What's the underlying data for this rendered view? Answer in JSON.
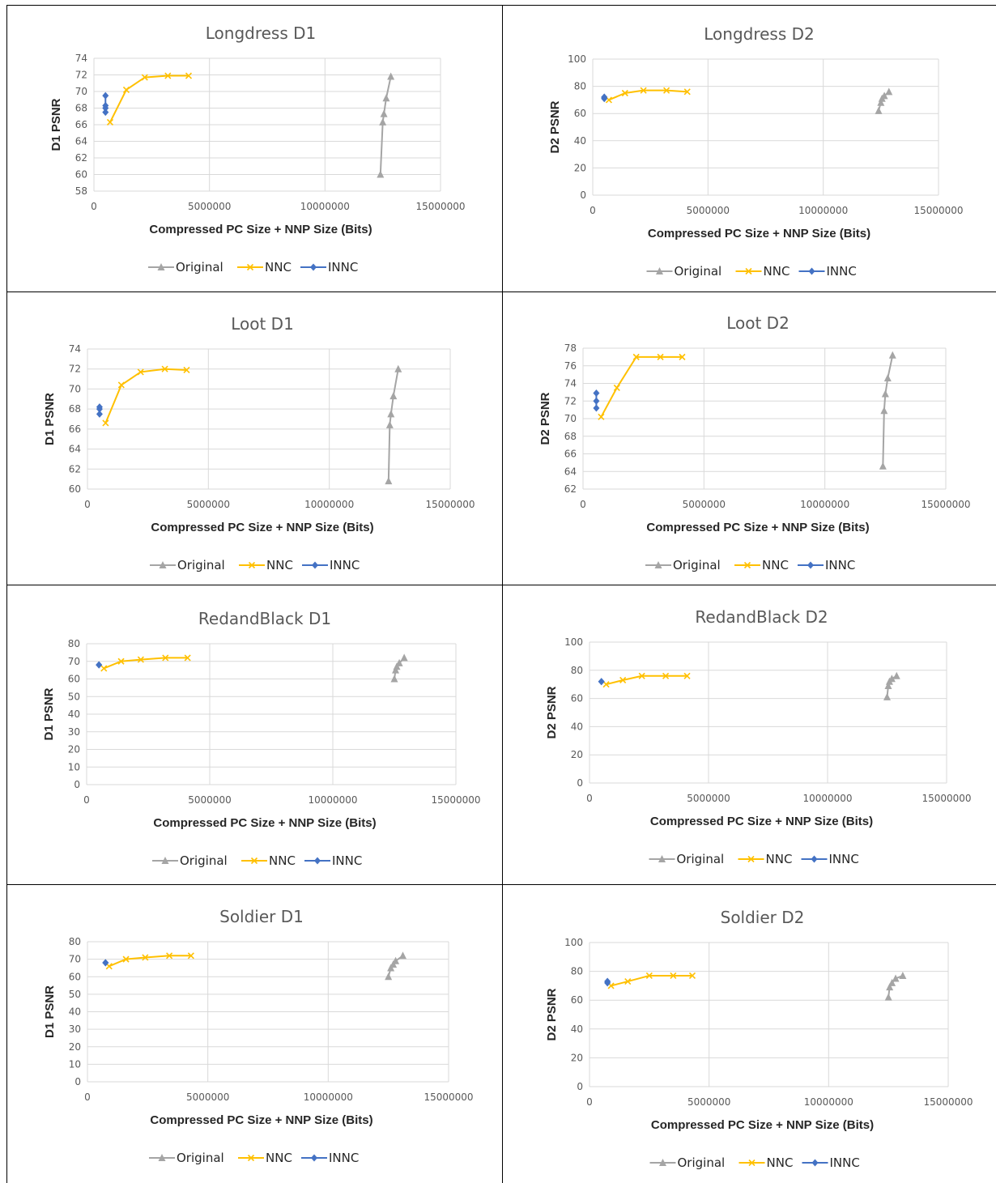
{
  "legend": [
    "Original",
    "NNC",
    "INNC"
  ],
  "colors": {
    "Original": "#a5a5a5",
    "NNC": "#ffc000",
    "INNC": "#4472c4",
    "grid": "#d9d9d9"
  },
  "chart_data": [
    {
      "type": "line",
      "title": "Longdress D1",
      "xlabel": "Compressed PC Size + NNP Size (Bits)",
      "ylabel": "D1 PSNR",
      "xlim": [
        0,
        15000000
      ],
      "xticks": [
        0,
        5000000,
        10000000,
        15000000
      ],
      "ylim": [
        58,
        74
      ],
      "yticks": [
        58,
        60,
        62,
        64,
        66,
        68,
        70,
        72,
        74
      ],
      "grid": true,
      "legend_position": "bottom",
      "series": [
        {
          "name": "Original",
          "marker": "triangle",
          "x": [
            12400000,
            12500000,
            12550000,
            12650000,
            12850000
          ],
          "y": [
            60.0,
            66.3,
            67.3,
            69.2,
            71.8
          ]
        },
        {
          "name": "NNC",
          "marker": "x",
          "x": [
            700000,
            1400000,
            2200000,
            3200000,
            4100000
          ],
          "y": [
            66.3,
            70.2,
            71.7,
            71.9,
            71.9
          ]
        },
        {
          "name": "INNC",
          "marker": "diamond",
          "x": [
            500000,
            500000,
            500000,
            500000
          ],
          "y": [
            67.5,
            68.0,
            68.3,
            69.5
          ]
        }
      ]
    },
    {
      "type": "line",
      "title": "Longdress D2",
      "xlabel": "Compressed PC Size + NNP Size (Bits)",
      "ylabel": "D2 PSNR",
      "xlim": [
        0,
        15000000
      ],
      "xticks": [
        0,
        5000000,
        10000000,
        15000000
      ],
      "ylim": [
        0,
        100
      ],
      "yticks": [
        0,
        20,
        40,
        60,
        80,
        100
      ],
      "grid": true,
      "legend_position": "bottom",
      "series": [
        {
          "name": "Original",
          "marker": "triangle",
          "x": [
            12400000,
            12500000,
            12550000,
            12650000,
            12850000
          ],
          "y": [
            62,
            68,
            71,
            73,
            76
          ]
        },
        {
          "name": "NNC",
          "marker": "x",
          "x": [
            700000,
            1400000,
            2200000,
            3200000,
            4100000
          ],
          "y": [
            70,
            75,
            77,
            77,
            76
          ]
        },
        {
          "name": "INNC",
          "marker": "diamond",
          "x": [
            500000,
            500000,
            500000
          ],
          "y": [
            71,
            72,
            72
          ]
        }
      ]
    },
    {
      "type": "line",
      "title": "Loot D1",
      "xlabel": "Compressed PC Size + NNP Size (Bits)",
      "ylabel": "D1 PSNR",
      "xlim": [
        0,
        15000000
      ],
      "xticks": [
        0,
        5000000,
        10000000,
        15000000
      ],
      "ylim": [
        60,
        74
      ],
      "yticks": [
        60,
        62,
        64,
        66,
        68,
        70,
        72,
        74
      ],
      "grid": true,
      "legend_position": "bottom",
      "series": [
        {
          "name": "Original",
          "marker": "triangle",
          "x": [
            12450000,
            12500000,
            12550000,
            12650000,
            12850000
          ],
          "y": [
            60.8,
            66.4,
            67.5,
            69.3,
            72.0
          ]
        },
        {
          "name": "NNC",
          "marker": "x",
          "x": [
            750000,
            1400000,
            2200000,
            3200000,
            4100000
          ],
          "y": [
            66.6,
            70.4,
            71.7,
            72.0,
            71.9
          ]
        },
        {
          "name": "INNC",
          "marker": "diamond",
          "x": [
            500000,
            500000,
            500000
          ],
          "y": [
            67.5,
            68.0,
            68.2
          ]
        }
      ]
    },
    {
      "type": "line",
      "title": "Loot D2",
      "xlabel": "Compressed PC Size + NNP Size (Bits)",
      "ylabel": "D2 PSNR",
      "xlim": [
        0,
        15000000
      ],
      "xticks": [
        0,
        5000000,
        10000000,
        15000000
      ],
      "ylim": [
        62,
        78
      ],
      "yticks": [
        62,
        64,
        66,
        68,
        70,
        72,
        74,
        76,
        78
      ],
      "grid": true,
      "legend_position": "bottom",
      "series": [
        {
          "name": "Original",
          "marker": "triangle",
          "x": [
            12400000,
            12450000,
            12500000,
            12600000,
            12800000
          ],
          "y": [
            64.6,
            70.9,
            72.8,
            74.6,
            77.2
          ]
        },
        {
          "name": "NNC",
          "marker": "x",
          "x": [
            750000,
            1400000,
            2200000,
            3200000,
            4100000
          ],
          "y": [
            70.2,
            73.5,
            77.0,
            77.0,
            77.0
          ]
        },
        {
          "name": "INNC",
          "marker": "diamond",
          "x": [
            550000,
            550000,
            550000
          ],
          "y": [
            71.2,
            72.0,
            72.9
          ]
        }
      ]
    },
    {
      "type": "line",
      "title": "RedandBlack D1",
      "xlabel": "Compressed PC Size + NNP Size (Bits)",
      "ylabel": "D1 PSNR",
      "xlim": [
        0,
        15000000
      ],
      "xticks": [
        0,
        5000000,
        10000000,
        15000000
      ],
      "ylim": [
        0,
        80
      ],
      "yticks": [
        0,
        10,
        20,
        30,
        40,
        50,
        60,
        70,
        80
      ],
      "grid": true,
      "legend_position": "bottom",
      "series": [
        {
          "name": "Original",
          "marker": "triangle",
          "x": [
            12500000,
            12550000,
            12600000,
            12700000,
            12900000
          ],
          "y": [
            60,
            65,
            67,
            69,
            72
          ]
        },
        {
          "name": "NNC",
          "marker": "x",
          "x": [
            700000,
            1400000,
            2200000,
            3200000,
            4100000
          ],
          "y": [
            66,
            70,
            71,
            72,
            72
          ]
        },
        {
          "name": "INNC",
          "marker": "diamond",
          "x": [
            500000,
            500000
          ],
          "y": [
            68,
            68
          ]
        }
      ]
    },
    {
      "type": "line",
      "title": "RedandBlack D2",
      "xlabel": "Compressed PC Size + NNP Size (Bits)",
      "ylabel": "D2 PSNR",
      "xlim": [
        0,
        15000000
      ],
      "xticks": [
        0,
        5000000,
        10000000,
        15000000
      ],
      "ylim": [
        0,
        100
      ],
      "yticks": [
        0,
        20,
        40,
        60,
        80,
        100
      ],
      "grid": true,
      "legend_position": "bottom",
      "series": [
        {
          "name": "Original",
          "marker": "triangle",
          "x": [
            12500000,
            12550000,
            12600000,
            12700000,
            12900000
          ],
          "y": [
            61,
            69,
            72,
            74,
            76
          ]
        },
        {
          "name": "NNC",
          "marker": "x",
          "x": [
            700000,
            1400000,
            2200000,
            3200000,
            4100000
          ],
          "y": [
            70,
            73,
            76,
            76,
            76
          ]
        },
        {
          "name": "INNC",
          "marker": "diamond",
          "x": [
            500000,
            500000
          ],
          "y": [
            72,
            72
          ]
        }
      ]
    },
    {
      "type": "line",
      "title": "Soldier D1",
      "xlabel": "Compressed PC Size + NNP Size (Bits)",
      "ylabel": "D1 PSNR",
      "xlim": [
        0,
        15000000
      ],
      "xticks": [
        0,
        5000000,
        10000000,
        15000000
      ],
      "ylim": [
        0,
        80
      ],
      "yticks": [
        0,
        10,
        20,
        30,
        40,
        50,
        60,
        70,
        80
      ],
      "grid": true,
      "legend_position": "bottom",
      "series": [
        {
          "name": "Original",
          "marker": "triangle",
          "x": [
            12500000,
            12600000,
            12700000,
            12800000,
            13100000
          ],
          "y": [
            60,
            65,
            67,
            69,
            72
          ]
        },
        {
          "name": "NNC",
          "marker": "x",
          "x": [
            900000,
            1600000,
            2400000,
            3400000,
            4300000
          ],
          "y": [
            66,
            70,
            71,
            72,
            72
          ]
        },
        {
          "name": "INNC",
          "marker": "diamond",
          "x": [
            750000,
            750000
          ],
          "y": [
            68,
            68
          ]
        }
      ]
    },
    {
      "type": "line",
      "title": "Soldier D2",
      "xlabel": "Compressed PC Size + NNP Size (Bits)",
      "ylabel": "D2 PSNR",
      "xlim": [
        0,
        15000000
      ],
      "xticks": [
        0,
        5000000,
        10000000,
        15000000
      ],
      "ylim": [
        0,
        100
      ],
      "yticks": [
        0,
        20,
        40,
        60,
        80,
        100
      ],
      "grid": true,
      "legend_position": "bottom",
      "series": [
        {
          "name": "Original",
          "marker": "triangle",
          "x": [
            12500000,
            12550000,
            12650000,
            12800000,
            13100000
          ],
          "y": [
            62,
            69,
            72,
            75,
            77
          ]
        },
        {
          "name": "NNC",
          "marker": "x",
          "x": [
            900000,
            1600000,
            2500000,
            3500000,
            4300000
          ],
          "y": [
            70,
            73,
            77,
            77,
            77
          ]
        },
        {
          "name": "INNC",
          "marker": "diamond",
          "x": [
            750000,
            750000
          ],
          "y": [
            72,
            73
          ]
        }
      ]
    }
  ]
}
